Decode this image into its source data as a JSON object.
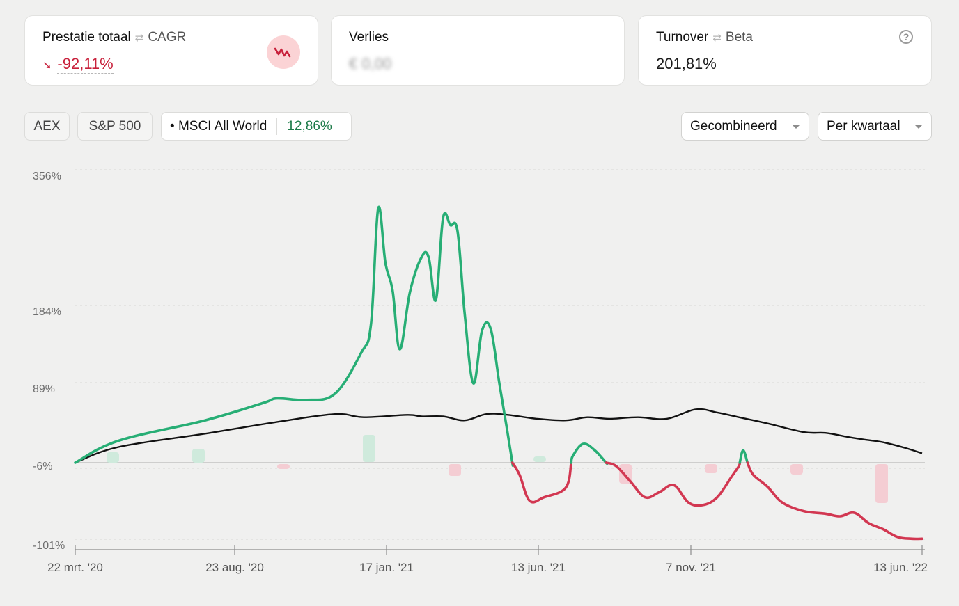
{
  "cards": {
    "performance": {
      "title": "Prestatie totaal",
      "alt": "CAGR",
      "value": "-92,11%",
      "trend_icon": "chart-down-icon",
      "accent": "#c8203b"
    },
    "loss": {
      "title": "Verlies",
      "value": "€ 0,00"
    },
    "turnover": {
      "title": "Turnover",
      "alt": "Beta",
      "value": "201,81%",
      "help": "?"
    }
  },
  "benchmarks": {
    "aex": "AEX",
    "sp500": "S&P 500",
    "msci": {
      "label": "MSCI All World",
      "value": "12,86%"
    }
  },
  "controls": {
    "mode": "Gecombineerd",
    "period": "Per kwartaal"
  },
  "chart_data": {
    "type": "line",
    "y_ticks": [
      "356%",
      "184%",
      "89%",
      "-6%",
      "-101%"
    ],
    "x_ticks": [
      "22 mrt. '20",
      "23 aug. '20",
      "17 jan. '21",
      "13 jun. '21",
      "7 nov. '21",
      "13 jun. '22"
    ],
    "grid": true,
    "colors": {
      "portfolio_positive": "#27ae75",
      "portfolio_negative": "#d23751",
      "benchmark": "#111111"
    },
    "series": [
      {
        "name": "",
        "values": [
          [
            0,
            -6
          ],
          [
            30,
            22
          ],
          [
            90,
            48
          ],
          [
            130,
            70
          ],
          [
            140,
            76
          ],
          [
            160,
            74
          ],
          [
            180,
            82
          ],
          [
            198,
            132
          ],
          [
            205,
            168
          ],
          [
            210,
            314
          ],
          [
            215,
            245
          ],
          [
            220,
            210
          ],
          [
            225,
            137
          ],
          [
            232,
            208
          ],
          [
            240,
            252
          ],
          [
            245,
            252
          ],
          [
            250,
            198
          ],
          [
            255,
            302
          ],
          [
            260,
            293
          ],
          [
            265,
            285
          ],
          [
            270,
            180
          ],
          [
            276,
            95
          ],
          [
            282,
            160
          ],
          [
            288,
            162
          ],
          [
            294,
            95
          ],
          [
            299,
            40
          ],
          [
            303,
            -6
          ],
          [
            308,
            -20
          ],
          [
            315,
            -50
          ],
          [
            325,
            -46
          ],
          [
            340,
            -35
          ],
          [
            345,
            3
          ],
          [
            352,
            18
          ],
          [
            360,
            10
          ],
          [
            368,
            -6
          ],
          [
            375,
            -10
          ],
          [
            385,
            -28
          ],
          [
            395,
            -46
          ],
          [
            405,
            -40
          ],
          [
            415,
            -32
          ],
          [
            425,
            -52
          ],
          [
            435,
            -55
          ],
          [
            445,
            -46
          ],
          [
            455,
            -22
          ],
          [
            460,
            -10
          ],
          [
            463,
            10
          ],
          [
            466,
            -6
          ],
          [
            470,
            -20
          ],
          [
            480,
            -34
          ],
          [
            490,
            -52
          ],
          [
            505,
            -62
          ],
          [
            520,
            -65
          ],
          [
            530,
            -68
          ],
          [
            540,
            -64
          ],
          [
            550,
            -76
          ],
          [
            560,
            -83
          ],
          [
            570,
            -92
          ],
          [
            580,
            -94
          ],
          [
            587,
            -94
          ]
        ]
      },
      {
        "name": "MSCI All World",
        "values": [
          [
            0,
            -6
          ],
          [
            30,
            14
          ],
          [
            90,
            31
          ],
          [
            140,
            46
          ],
          [
            180,
            56
          ],
          [
            200,
            52
          ],
          [
            230,
            55
          ],
          [
            240,
            53
          ],
          [
            255,
            53
          ],
          [
            270,
            48
          ],
          [
            285,
            56
          ],
          [
            300,
            55
          ],
          [
            320,
            50
          ],
          [
            340,
            48
          ],
          [
            355,
            52
          ],
          [
            370,
            50
          ],
          [
            390,
            52
          ],
          [
            410,
            50
          ],
          [
            430,
            62
          ],
          [
            445,
            58
          ],
          [
            460,
            52
          ],
          [
            480,
            44
          ],
          [
            505,
            33
          ],
          [
            520,
            32
          ],
          [
            535,
            27
          ],
          [
            545,
            24
          ],
          [
            560,
            20
          ],
          [
            575,
            13
          ],
          [
            587,
            6
          ]
        ]
      }
    ]
  }
}
